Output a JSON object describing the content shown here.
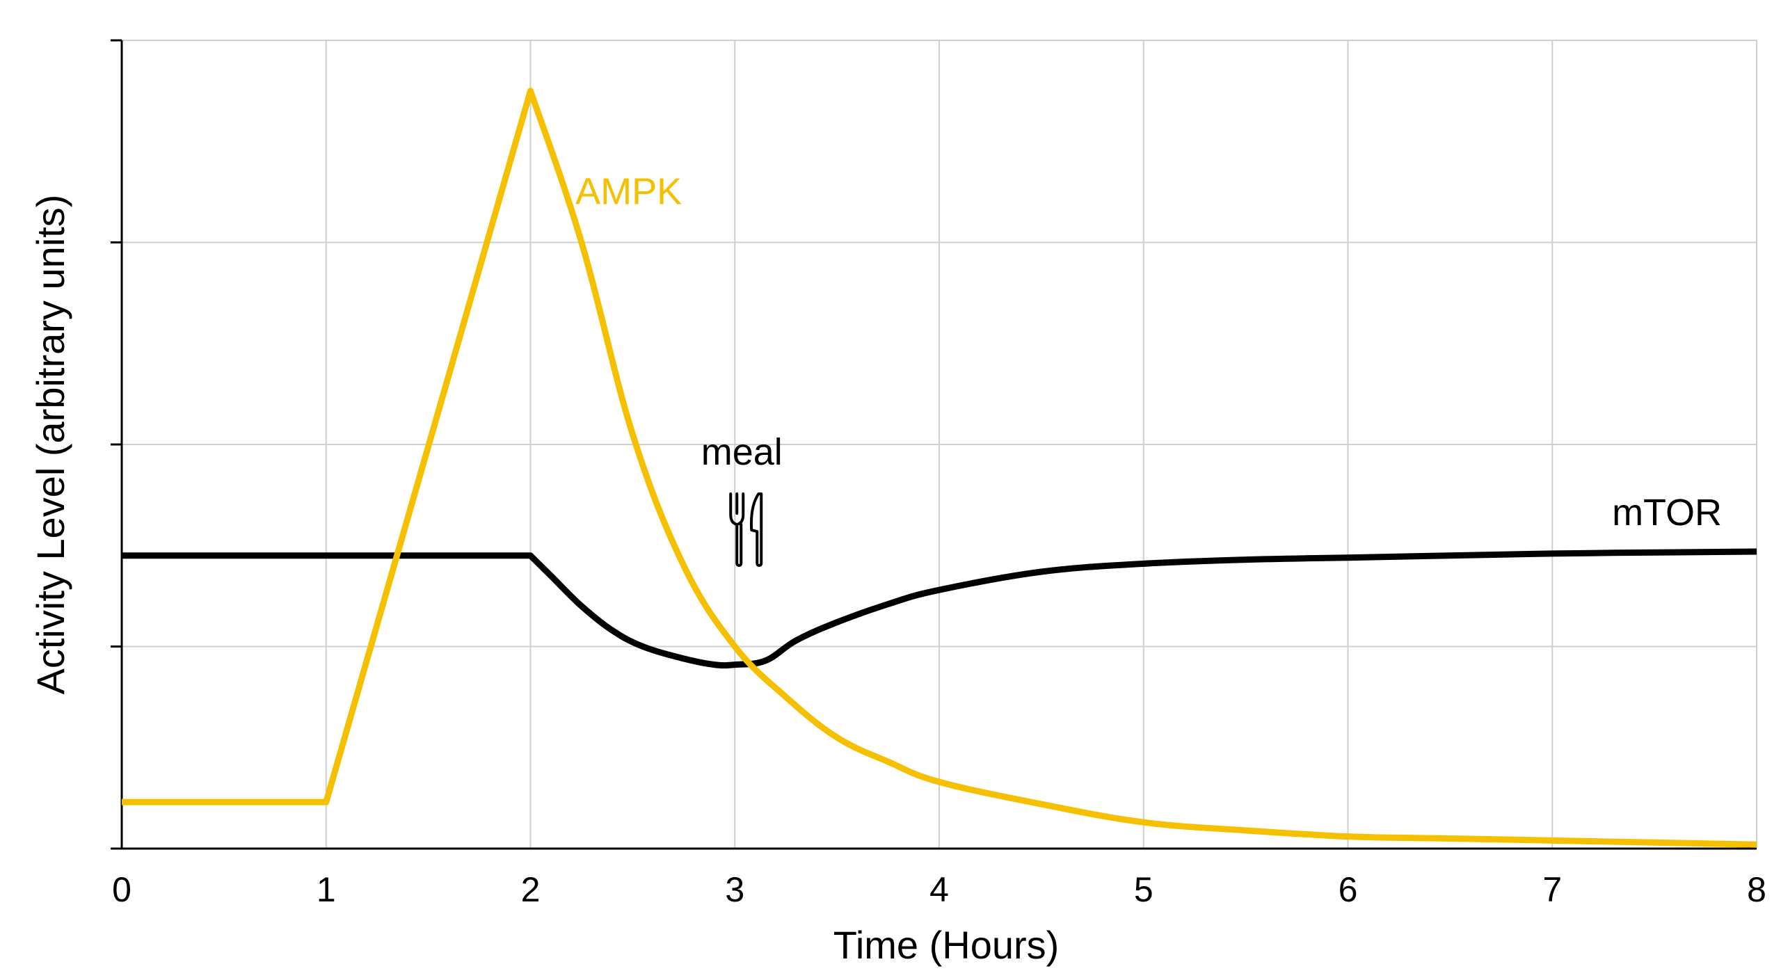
{
  "chart_data": {
    "type": "line",
    "title": "",
    "xlabel": "Time (Hours)",
    "ylabel": "Activity Level (arbitrary units)",
    "xlim": [
      0,
      8
    ],
    "ylim": [
      0,
      4
    ],
    "x_ticks": [
      "0",
      "1",
      "2",
      "3",
      "4",
      "5",
      "6",
      "7",
      "8"
    ],
    "grid": true,
    "legend": "none",
    "series": [
      {
        "name": "AMPK",
        "color": "#F5C000",
        "x": [
          0,
          1,
          2,
          2.25,
          2.5,
          2.75,
          3,
          3.25,
          3.5,
          3.75,
          4,
          4.5,
          5,
          5.5,
          6,
          6.5,
          7,
          7.5,
          8
        ],
        "y": [
          0.23,
          0.23,
          3.75,
          3.0,
          2.05,
          1.4,
          1.0,
          0.75,
          0.55,
          0.43,
          0.33,
          0.22,
          0.13,
          0.09,
          0.06,
          0.05,
          0.04,
          0.03,
          0.02
        ]
      },
      {
        "name": "mTOR",
        "color": "#000000",
        "x": [
          0,
          2,
          2.1,
          2.25,
          2.4,
          2.55,
          2.75,
          2.9,
          3.0,
          3.15,
          3.3,
          3.5,
          3.75,
          4,
          4.5,
          5,
          5.5,
          6,
          7,
          8
        ],
        "y": [
          1.45,
          1.45,
          1.35,
          1.2,
          1.08,
          1.0,
          0.94,
          0.91,
          0.91,
          0.93,
          1.03,
          1.12,
          1.21,
          1.28,
          1.37,
          1.41,
          1.43,
          1.44,
          1.46,
          1.47
        ]
      }
    ],
    "annotations": [
      {
        "text": "meal",
        "x": 3.0,
        "y": 1.9,
        "icon": "fork-knife-icon",
        "color": "#000000"
      }
    ]
  }
}
